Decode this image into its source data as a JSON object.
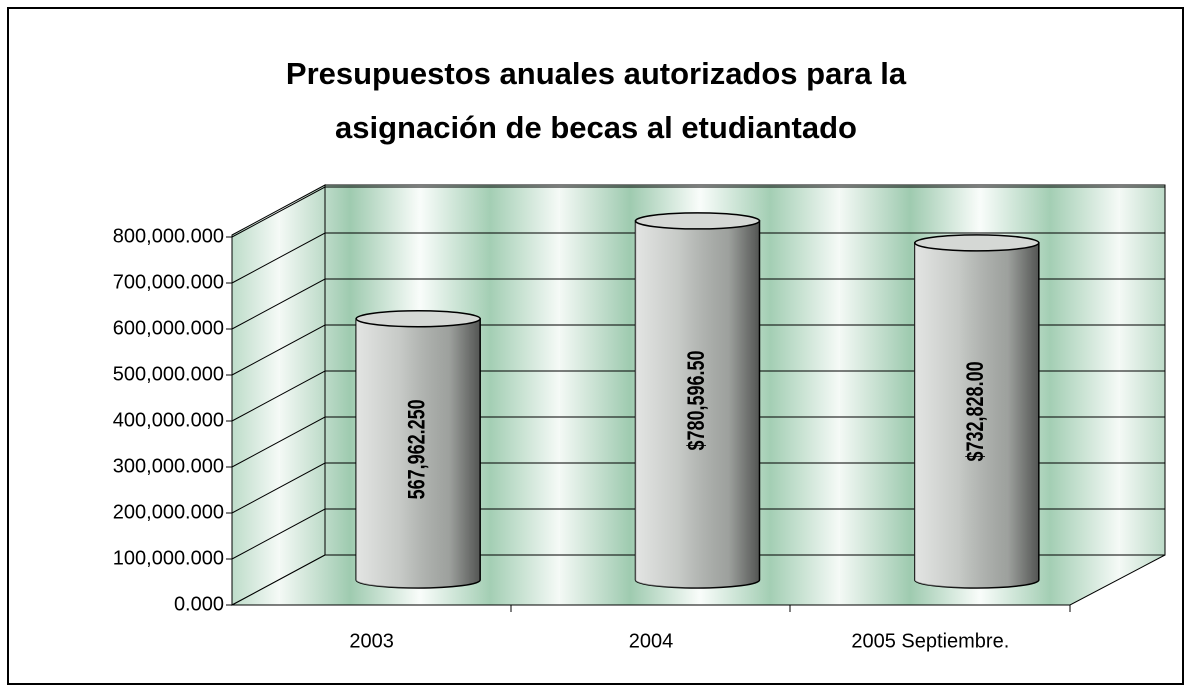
{
  "chart_data": {
    "type": "bar",
    "title": "Presupuestos anuales autorizados para la",
    "subtitle": "asignación de becas al etudiantado",
    "categories": [
      "2003",
      "2004",
      "2005 Septiembre."
    ],
    "values": [
      567962.25,
      780596.5,
      732828
    ],
    "value_labels": [
      "567,962.250",
      "$780,596.50",
      "$732,828.00"
    ],
    "color": "#b9bdb9",
    "ylim": [
      0,
      800000
    ],
    "yticks": [
      {
        "value": 0,
        "label": "0.000"
      },
      {
        "value": 100000,
        "label": "100,000.000"
      },
      {
        "value": 200000,
        "label": "200,000.000"
      },
      {
        "value": 300000,
        "label": "300,000.000"
      },
      {
        "value": 400000,
        "label": "400,000.000"
      },
      {
        "value": 500000,
        "label": "500,000.000"
      },
      {
        "value": 600000,
        "label": "600,000.000"
      },
      {
        "value": 700000,
        "label": "700,000.000"
      },
      {
        "value": 800000,
        "label": "800,000.000"
      }
    ],
    "grid": true
  }
}
